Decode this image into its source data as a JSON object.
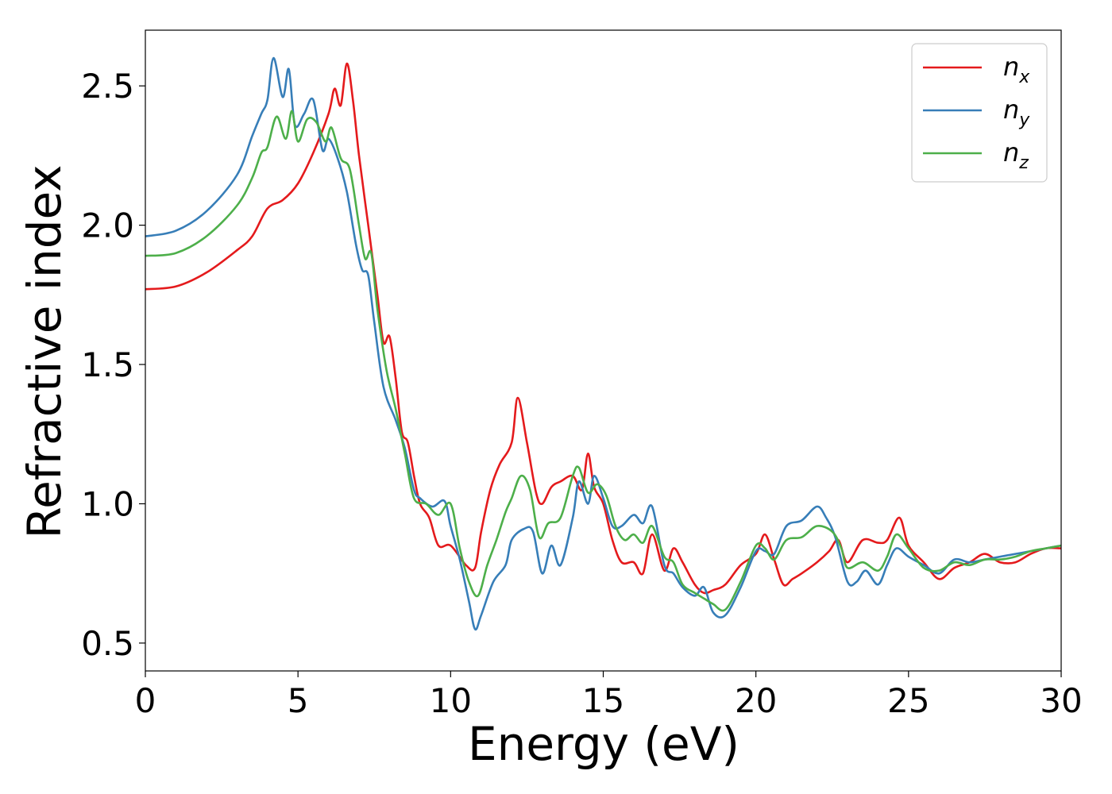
{
  "chart_data": {
    "type": "line",
    "title": "",
    "xlabel": "Energy (eV)",
    "ylabel": "Refractive index",
    "xlim": [
      0,
      30
    ],
    "ylim": [
      0.4,
      2.7
    ],
    "xticks": [
      0,
      5,
      10,
      15,
      20,
      25,
      30
    ],
    "yticks": [
      0.5,
      1.0,
      1.5,
      2.0,
      2.5
    ],
    "xtick_labels": [
      "0",
      "5",
      "10",
      "15",
      "20",
      "25",
      "30"
    ],
    "ytick_labels": [
      "0.5",
      "1.0",
      "1.5",
      "2.0",
      "2.5"
    ],
    "grid": false,
    "legend_position": "top-right",
    "series": [
      {
        "name": "n_x",
        "label_base": "n",
        "label_sub": "x",
        "color": "#e41a1c",
        "points": [
          [
            0,
            1.77
          ],
          [
            1,
            1.78
          ],
          [
            2,
            1.83
          ],
          [
            3,
            1.91
          ],
          [
            3.5,
            1.96
          ],
          [
            4,
            2.06
          ],
          [
            4.5,
            2.09
          ],
          [
            5,
            2.15
          ],
          [
            5.5,
            2.26
          ],
          [
            6,
            2.4
          ],
          [
            6.2,
            2.49
          ],
          [
            6.4,
            2.43
          ],
          [
            6.6,
            2.58
          ],
          [
            6.8,
            2.45
          ],
          [
            7,
            2.25
          ],
          [
            7.3,
            2.0
          ],
          [
            7.6,
            1.75
          ],
          [
            7.8,
            1.58
          ],
          [
            8,
            1.6
          ],
          [
            8.2,
            1.45
          ],
          [
            8.4,
            1.26
          ],
          [
            8.6,
            1.22
          ],
          [
            8.8,
            1.1
          ],
          [
            9,
            1.0
          ],
          [
            9.3,
            0.95
          ],
          [
            9.6,
            0.85
          ],
          [
            10,
            0.85
          ],
          [
            10.5,
            0.78
          ],
          [
            10.8,
            0.77
          ],
          [
            11,
            0.9
          ],
          [
            11.3,
            1.05
          ],
          [
            11.6,
            1.14
          ],
          [
            12,
            1.22
          ],
          [
            12.2,
            1.38
          ],
          [
            12.5,
            1.22
          ],
          [
            12.8,
            1.04
          ],
          [
            13,
            1.0
          ],
          [
            13.3,
            1.06
          ],
          [
            13.6,
            1.08
          ],
          [
            14,
            1.1
          ],
          [
            14.3,
            1.05
          ],
          [
            14.5,
            1.18
          ],
          [
            14.7,
            1.06
          ],
          [
            15,
            1.0
          ],
          [
            15.3,
            0.87
          ],
          [
            15.6,
            0.79
          ],
          [
            16,
            0.79
          ],
          [
            16.3,
            0.75
          ],
          [
            16.6,
            0.89
          ],
          [
            17,
            0.76
          ],
          [
            17.3,
            0.84
          ],
          [
            17.6,
            0.79
          ],
          [
            18,
            0.71
          ],
          [
            18.3,
            0.68
          ],
          [
            18.6,
            0.69
          ],
          [
            19,
            0.71
          ],
          [
            19.5,
            0.78
          ],
          [
            20,
            0.82
          ],
          [
            20.3,
            0.89
          ],
          [
            20.6,
            0.8
          ],
          [
            20.9,
            0.71
          ],
          [
            21.2,
            0.73
          ],
          [
            21.5,
            0.75
          ],
          [
            22,
            0.79
          ],
          [
            22.4,
            0.83
          ],
          [
            22.7,
            0.87
          ],
          [
            23,
            0.79
          ],
          [
            23.5,
            0.87
          ],
          [
            24,
            0.86
          ],
          [
            24.3,
            0.87
          ],
          [
            24.7,
            0.95
          ],
          [
            25,
            0.85
          ],
          [
            25.5,
            0.79
          ],
          [
            26,
            0.73
          ],
          [
            26.5,
            0.77
          ],
          [
            27,
            0.79
          ],
          [
            27.5,
            0.82
          ],
          [
            28,
            0.79
          ],
          [
            28.5,
            0.79
          ],
          [
            29,
            0.82
          ],
          [
            29.5,
            0.84
          ],
          [
            30,
            0.84
          ]
        ]
      },
      {
        "name": "n_y",
        "label_base": "n",
        "label_sub": "y",
        "color": "#377eb8",
        "points": [
          [
            0,
            1.96
          ],
          [
            1,
            1.98
          ],
          [
            2,
            2.05
          ],
          [
            3,
            2.18
          ],
          [
            3.5,
            2.32
          ],
          [
            3.8,
            2.4
          ],
          [
            4,
            2.45
          ],
          [
            4.2,
            2.6
          ],
          [
            4.5,
            2.46
          ],
          [
            4.7,
            2.56
          ],
          [
            4.9,
            2.36
          ],
          [
            5.2,
            2.4
          ],
          [
            5.5,
            2.45
          ],
          [
            5.8,
            2.27
          ],
          [
            6,
            2.31
          ],
          [
            6.3,
            2.24
          ],
          [
            6.6,
            2.12
          ],
          [
            6.9,
            1.93
          ],
          [
            7.1,
            1.84
          ],
          [
            7.3,
            1.82
          ],
          [
            7.5,
            1.65
          ],
          [
            7.8,
            1.42
          ],
          [
            8.2,
            1.3
          ],
          [
            8.5,
            1.2
          ],
          [
            8.8,
            1.05
          ],
          [
            9,
            1.02
          ],
          [
            9.4,
            0.99
          ],
          [
            9.8,
            1.01
          ],
          [
            10,
            0.92
          ],
          [
            10.3,
            0.8
          ],
          [
            10.6,
            0.65
          ],
          [
            10.8,
            0.55
          ],
          [
            11,
            0.6
          ],
          [
            11.4,
            0.72
          ],
          [
            11.8,
            0.78
          ],
          [
            12,
            0.87
          ],
          [
            12.4,
            0.91
          ],
          [
            12.7,
            0.9
          ],
          [
            13,
            0.75
          ],
          [
            13.3,
            0.85
          ],
          [
            13.6,
            0.78
          ],
          [
            14,
            0.95
          ],
          [
            14.2,
            1.08
          ],
          [
            14.5,
            1.0
          ],
          [
            14.7,
            1.1
          ],
          [
            15,
            1.02
          ],
          [
            15.3,
            0.92
          ],
          [
            15.6,
            0.92
          ],
          [
            16,
            0.96
          ],
          [
            16.3,
            0.93
          ],
          [
            16.6,
            0.99
          ],
          [
            17,
            0.78
          ],
          [
            17.3,
            0.75
          ],
          [
            17.6,
            0.7
          ],
          [
            18,
            0.67
          ],
          [
            18.3,
            0.7
          ],
          [
            18.6,
            0.61
          ],
          [
            19,
            0.6
          ],
          [
            19.5,
            0.7
          ],
          [
            20,
            0.83
          ],
          [
            20.3,
            0.83
          ],
          [
            20.6,
            0.82
          ],
          [
            21,
            0.92
          ],
          [
            21.5,
            0.94
          ],
          [
            22,
            0.99
          ],
          [
            22.3,
            0.95
          ],
          [
            22.6,
            0.88
          ],
          [
            23,
            0.72
          ],
          [
            23.3,
            0.72
          ],
          [
            23.6,
            0.76
          ],
          [
            24,
            0.71
          ],
          [
            24.3,
            0.78
          ],
          [
            24.6,
            0.84
          ],
          [
            25,
            0.81
          ],
          [
            25.5,
            0.78
          ],
          [
            26,
            0.75
          ],
          [
            26.5,
            0.8
          ],
          [
            27,
            0.79
          ],
          [
            27.5,
            0.8
          ],
          [
            28,
            0.81
          ],
          [
            28.5,
            0.82
          ],
          [
            29,
            0.83
          ],
          [
            29.5,
            0.84
          ],
          [
            30,
            0.85
          ]
        ]
      },
      {
        "name": "n_z",
        "label_base": "n",
        "label_sub": "z",
        "color": "#4daf4a",
        "points": [
          [
            0,
            1.89
          ],
          [
            1,
            1.9
          ],
          [
            2,
            1.96
          ],
          [
            3,
            2.07
          ],
          [
            3.5,
            2.17
          ],
          [
            3.8,
            2.26
          ],
          [
            4,
            2.28
          ],
          [
            4.3,
            2.39
          ],
          [
            4.6,
            2.31
          ],
          [
            4.8,
            2.41
          ],
          [
            5,
            2.3
          ],
          [
            5.3,
            2.38
          ],
          [
            5.6,
            2.37
          ],
          [
            5.9,
            2.3
          ],
          [
            6.1,
            2.35
          ],
          [
            6.4,
            2.24
          ],
          [
            6.7,
            2.2
          ],
          [
            7,
            2.0
          ],
          [
            7.2,
            1.88
          ],
          [
            7.4,
            1.9
          ],
          [
            7.6,
            1.7
          ],
          [
            7.9,
            1.48
          ],
          [
            8.2,
            1.34
          ],
          [
            8.5,
            1.18
          ],
          [
            8.8,
            1.02
          ],
          [
            9.2,
            1.0
          ],
          [
            9.6,
            0.96
          ],
          [
            10,
            1.0
          ],
          [
            10.3,
            0.84
          ],
          [
            10.6,
            0.72
          ],
          [
            10.9,
            0.67
          ],
          [
            11.2,
            0.78
          ],
          [
            11.5,
            0.87
          ],
          [
            11.8,
            0.97
          ],
          [
            12,
            1.02
          ],
          [
            12.3,
            1.1
          ],
          [
            12.6,
            1.05
          ],
          [
            12.9,
            0.88
          ],
          [
            13.2,
            0.93
          ],
          [
            13.6,
            0.95
          ],
          [
            14,
            1.1
          ],
          [
            14.2,
            1.13
          ],
          [
            14.5,
            1.04
          ],
          [
            14.8,
            1.07
          ],
          [
            15.1,
            1.03
          ],
          [
            15.4,
            0.92
          ],
          [
            15.7,
            0.87
          ],
          [
            16,
            0.89
          ],
          [
            16.3,
            0.86
          ],
          [
            16.6,
            0.92
          ],
          [
            17,
            0.81
          ],
          [
            17.3,
            0.79
          ],
          [
            17.6,
            0.71
          ],
          [
            18,
            0.68
          ],
          [
            18.3,
            0.66
          ],
          [
            18.6,
            0.64
          ],
          [
            19,
            0.62
          ],
          [
            19.5,
            0.72
          ],
          [
            20,
            0.85
          ],
          [
            20.3,
            0.84
          ],
          [
            20.6,
            0.8
          ],
          [
            21,
            0.87
          ],
          [
            21.5,
            0.88
          ],
          [
            22,
            0.92
          ],
          [
            22.5,
            0.9
          ],
          [
            22.8,
            0.84
          ],
          [
            23,
            0.77
          ],
          [
            23.5,
            0.79
          ],
          [
            24,
            0.76
          ],
          [
            24.3,
            0.81
          ],
          [
            24.6,
            0.89
          ],
          [
            25,
            0.84
          ],
          [
            25.5,
            0.77
          ],
          [
            26,
            0.76
          ],
          [
            26.5,
            0.79
          ],
          [
            27,
            0.78
          ],
          [
            27.5,
            0.8
          ],
          [
            28,
            0.8
          ],
          [
            28.5,
            0.81
          ],
          [
            29,
            0.83
          ],
          [
            29.5,
            0.84
          ],
          [
            30,
            0.85
          ]
        ]
      }
    ]
  }
}
